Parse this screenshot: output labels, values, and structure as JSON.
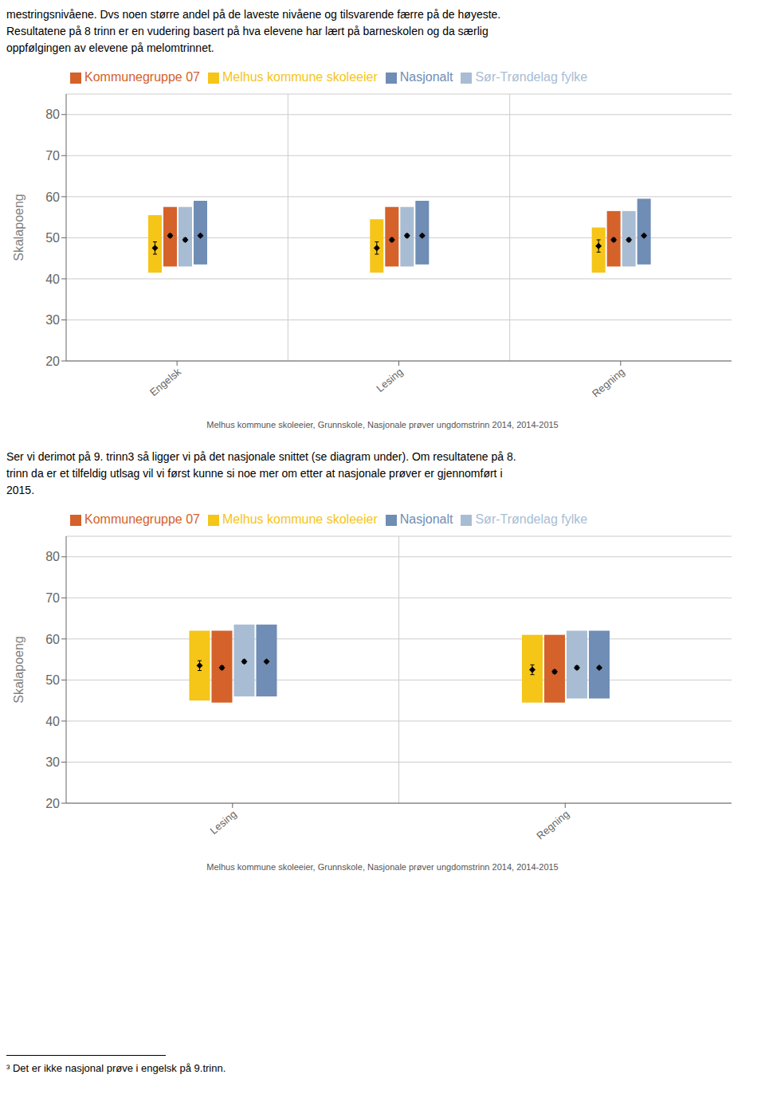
{
  "chart_data": [
    {
      "type": "range_bar",
      "title": "Melhus kommune skoleeier, Grunnskole, Nasjonale prøver ungdomstrinn 2014, 2014-2015",
      "annotations": [
        "mestringsnivåene. Dvs noen større andel på de laveste nivåene og tilsvarende færre på de høyeste.",
        "Resultatene på 8 trinn er en vudering basert på hva elevene har lært på barneskolen og da særlig",
        "oppfølgingen av elevene på melomtrinnet."
      ],
      "ylabel": "Skalapoeng",
      "categories": [
        "Engelsk",
        "Lesing",
        "Regning"
      ],
      "series": [
        {
          "name": "Melhus kommune skoleeier",
          "color": "#F5C518",
          "values": [
            [
              41.5,
              55.5
            ],
            [
              41.5,
              54.5
            ],
            [
              41.5,
              52.5
            ]
          ],
          "diamonds": [
            47.5,
            47.5,
            48.0
          ],
          "errors": [
            1.5,
            1.5,
            1.5
          ]
        },
        {
          "name": "Kommunegruppe 07",
          "color": "#D4622A",
          "values": [
            [
              43.0,
              57.5
            ],
            [
              43.0,
              57.5
            ],
            [
              43.0,
              56.5
            ]
          ],
          "diamonds": [
            50.5,
            49.5,
            49.5
          ],
          "errors": [
            0.4,
            0.4,
            0.4
          ]
        },
        {
          "name": "Sør-Trøndelag fylke",
          "color": "#A8BDD4",
          "values": [
            [
              43.0,
              57.5
            ],
            [
              43.0,
              57.5
            ],
            [
              43.0,
              56.5
            ]
          ],
          "diamonds": [
            49.5,
            50.5,
            49.5
          ],
          "errors": [
            0.4,
            0.4,
            0.4
          ]
        },
        {
          "name": "Nasjonalt",
          "color": "#6F8DB5",
          "values": [
            [
              43.5,
              59.0
            ],
            [
              43.5,
              59.0
            ],
            [
              43.5,
              59.5
            ]
          ],
          "diamonds": [
            50.5,
            50.5,
            50.5
          ],
          "errors": [
            0.3,
            0.3,
            0.3
          ]
        }
      ],
      "ylim": [
        20,
        85
      ],
      "yticks": [
        20,
        30,
        40,
        50,
        60,
        70,
        80
      ],
      "grid": true,
      "legend": "upper left",
      "marker": "diamond"
    },
    {
      "type": "range_bar",
      "title": "Melhus kommune skoleeier, Grunnskole, Nasjonale prøver ungdomstrinn 2014, 2014-2015",
      "annotations": [
        "Ser vi derimot på 9. trinn3 så ligger vi på det nasjonale snittet (se diagram under). Om resultatene på 8.",
        "trinn da er et tilfeldig utlsag vil vi først kunne si noe mer om etter at nasjonale prøver er gjennomført i",
        "2015."
      ],
      "ylabel": "Skalapoeng",
      "categories": [
        "Lesing",
        "Regning"
      ],
      "series": [
        {
          "name": "Melhus kommune skoleeier",
          "color": "#F5C518",
          "values": [
            [
              45.0,
              62.0
            ],
            [
              44.5,
              61.0
            ]
          ],
          "diamonds": [
            53.5,
            52.5
          ],
          "errors": [
            1.2,
            1.2
          ]
        },
        {
          "name": "Kommunegruppe 07",
          "color": "#D4622A",
          "values": [
            [
              44.5,
              62.0
            ],
            [
              44.5,
              61.0
            ]
          ],
          "diamonds": [
            53.0,
            52.0
          ],
          "errors": [
            0.4,
            0.4
          ]
        },
        {
          "name": "Sør-Trøndelag fylke",
          "color": "#A8BDD4",
          "values": [
            [
              46.0,
              63.5
            ],
            [
              45.5,
              62.0
            ]
          ],
          "diamonds": [
            54.5,
            53.0
          ],
          "errors": [
            0.4,
            0.4
          ]
        },
        {
          "name": "Nasjonalt",
          "color": "#6F8DB5",
          "values": [
            [
              46.0,
              63.5
            ],
            [
              45.5,
              62.0
            ]
          ],
          "diamonds": [
            54.5,
            53.0
          ],
          "errors": [
            0.3,
            0.3
          ]
        }
      ],
      "ylim": [
        20,
        85
      ],
      "yticks": [
        20,
        30,
        40,
        50,
        60,
        70,
        80
      ],
      "grid": true,
      "legend": "upper left",
      "marker": "diamond"
    }
  ],
  "footnote": "³ Det er ikke nasjonal prøve i engelsk på 9.trinn."
}
